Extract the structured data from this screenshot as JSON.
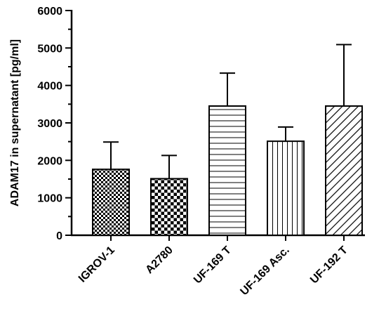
{
  "chart_data": {
    "type": "bar",
    "title": "",
    "xlabel": "",
    "ylabel": "ADAM17 in supernatant [pg/ml]",
    "ylim": [
      0,
      6000
    ],
    "yticks_major": [
      0,
      1000,
      2000,
      3000,
      4000,
      5000,
      6000
    ],
    "categories": [
      "IGROV-1",
      "A2780",
      "UF-169 T",
      "UF-169 Asc.",
      "UF-192 T"
    ],
    "values": [
      1760,
      1510,
      3450,
      2510,
      3450
    ],
    "errors": [
      730,
      620,
      880,
      380,
      1640
    ],
    "patterns": [
      "fine-checker",
      "coarse-checker",
      "horizontal-lines",
      "vertical-lines",
      "diagonal-lines"
    ],
    "colors": {
      "fill": "#ffffff",
      "stroke": "#000000"
    },
    "grid": false,
    "legend": "none"
  }
}
